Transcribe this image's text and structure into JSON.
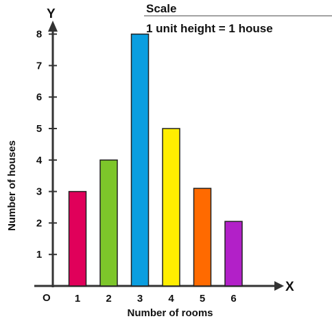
{
  "chart_data": {
    "type": "bar",
    "categories": [
      "1",
      "2",
      "3",
      "4",
      "5",
      "6"
    ],
    "values": [
      3,
      4,
      8,
      5,
      3.1,
      2.05
    ],
    "colors": [
      "#e0005a",
      "#7dc62a",
      "#0a9ee0",
      "#ffee00",
      "#ff6a00",
      "#b220c8"
    ],
    "title": "",
    "xlabel": "Number of rooms",
    "ylabel": "Number of houses",
    "ylim": [
      0,
      8
    ],
    "yticks": [
      "1",
      "2",
      "3",
      "4",
      "5",
      "6",
      "7",
      "8"
    ],
    "origin_label": "O",
    "x_axis_letter": "X",
    "y_axis_letter": "Y",
    "grid": false,
    "scale": {
      "heading": "Scale",
      "text": "1 unit height = 1 house"
    }
  }
}
